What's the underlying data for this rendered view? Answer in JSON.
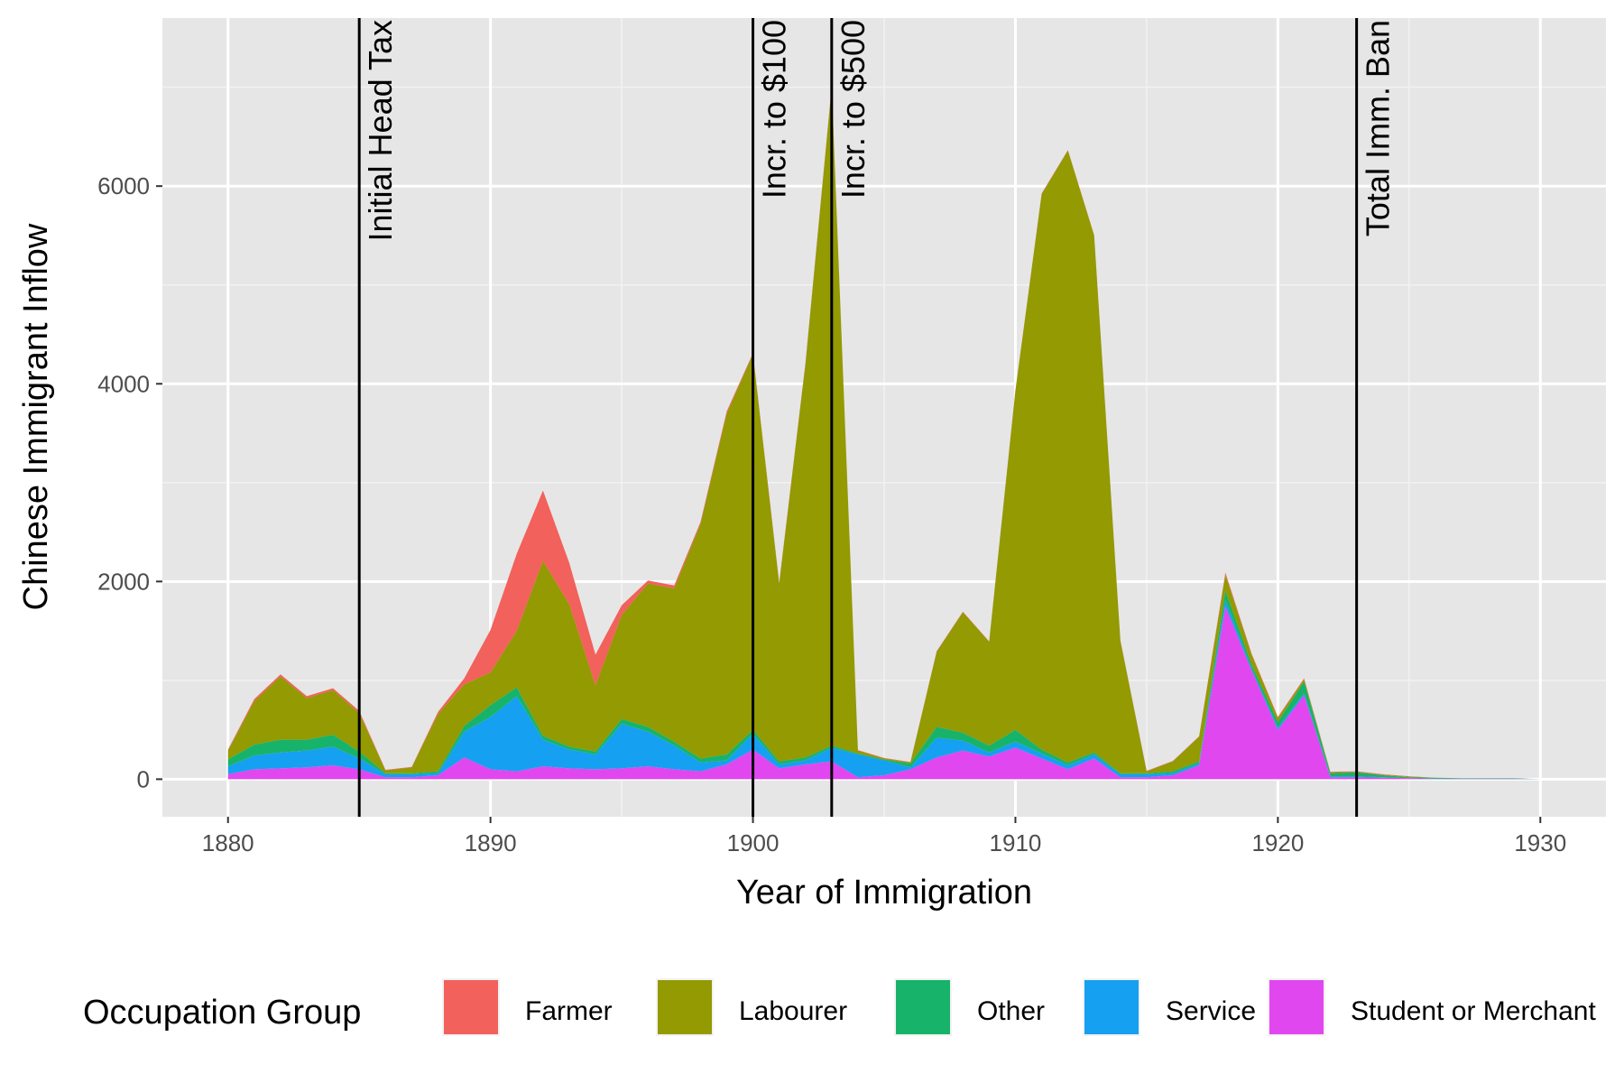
{
  "chart_data": {
    "type": "area",
    "stacked": true,
    "xlabel": "Year of Immigration",
    "ylabel": "Chinese Immigrant Inflow",
    "xlim": [
      1877.5,
      1932.5
    ],
    "ylim": [
      -380,
      7700
    ],
    "x_ticks": [
      1880,
      1890,
      1900,
      1910,
      1920,
      1930
    ],
    "y_ticks": [
      0,
      2000,
      4000,
      6000
    ],
    "grid": true,
    "legend": {
      "title": "Occupation Group",
      "position": "bottom"
    },
    "x": [
      1880,
      1881,
      1882,
      1883,
      1884,
      1885,
      1886,
      1887,
      1888,
      1889,
      1890,
      1891,
      1892,
      1893,
      1894,
      1895,
      1896,
      1897,
      1898,
      1899,
      1900,
      1901,
      1902,
      1903,
      1904,
      1905,
      1906,
      1907,
      1908,
      1909,
      1910,
      1911,
      1912,
      1913,
      1914,
      1915,
      1916,
      1917,
      1918,
      1919,
      1920,
      1921,
      1922,
      1923,
      1924,
      1925,
      1926,
      1927,
      1928,
      1929,
      1930
    ],
    "series": [
      {
        "name": "Student or Merchant",
        "color": "#e147ef",
        "values": [
          50,
          100,
          110,
          120,
          140,
          100,
          20,
          20,
          40,
          220,
          100,
          80,
          130,
          110,
          100,
          110,
          130,
          100,
          80,
          150,
          300,
          110,
          150,
          180,
          20,
          40,
          100,
          220,
          290,
          230,
          320,
          210,
          100,
          210,
          20,
          20,
          40,
          140,
          1750,
          1100,
          500,
          850,
          20,
          20,
          15,
          10,
          5,
          5,
          5,
          5,
          0
        ]
      },
      {
        "name": "Service",
        "color": "#16a0f1",
        "values": [
          80,
          140,
          160,
          170,
          190,
          110,
          30,
          30,
          20,
          260,
          530,
          760,
          270,
          190,
          150,
          450,
          350,
          240,
          90,
          40,
          160,
          40,
          40,
          140,
          230,
          150,
          20,
          200,
          100,
          40,
          60,
          50,
          40,
          40,
          30,
          30,
          20,
          20,
          60,
          20,
          20,
          20,
          10,
          10,
          5,
          0,
          0,
          0,
          0,
          0,
          0
        ]
      },
      {
        "name": "Other",
        "color": "#18b36a",
        "values": [
          70,
          110,
          130,
          110,
          120,
          70,
          10,
          10,
          20,
          60,
          120,
          90,
          40,
          30,
          30,
          50,
          50,
          40,
          40,
          60,
          40,
          30,
          30,
          20,
          10,
          10,
          40,
          110,
          80,
          70,
          120,
          40,
          30,
          20,
          10,
          10,
          20,
          20,
          100,
          40,
          60,
          120,
          30,
          40,
          20,
          10,
          10,
          5,
          5,
          5,
          0
        ]
      },
      {
        "name": "Labourer",
        "color": "#939a02",
        "values": [
          90,
          440,
          640,
          420,
          450,
          390,
          30,
          60,
          580,
          420,
          330,
          570,
          1770,
          1440,
          670,
          1050,
          1450,
          1550,
          2370,
          3450,
          3800,
          1800,
          3980,
          6660,
          30,
          10,
          10,
          760,
          1220,
          1050,
          3430,
          5620,
          6190,
          5230,
          1340,
          20,
          100,
          250,
          160,
          100,
          40,
          20,
          10,
          5,
          5,
          5,
          0,
          0,
          0,
          0,
          0
        ]
      },
      {
        "name": "Farmer",
        "color": "#f2615b",
        "values": [
          10,
          20,
          20,
          20,
          20,
          20,
          5,
          5,
          20,
          60,
          430,
          780,
          710,
          420,
          310,
          100,
          30,
          30,
          20,
          20,
          10,
          10,
          10,
          10,
          5,
          5,
          5,
          5,
          5,
          5,
          5,
          5,
          5,
          5,
          5,
          5,
          5,
          5,
          20,
          10,
          10,
          10,
          5,
          5,
          5,
          5,
          0,
          0,
          0,
          0,
          0
        ]
      }
    ],
    "annotations": [
      {
        "x": 1885,
        "label": "Initial Head Tax"
      },
      {
        "x": 1900,
        "label": "Incr. to $100"
      },
      {
        "x": 1903,
        "label": "Incr. to $500"
      },
      {
        "x": 1923,
        "label": "Total Imm. Ban"
      }
    ]
  }
}
